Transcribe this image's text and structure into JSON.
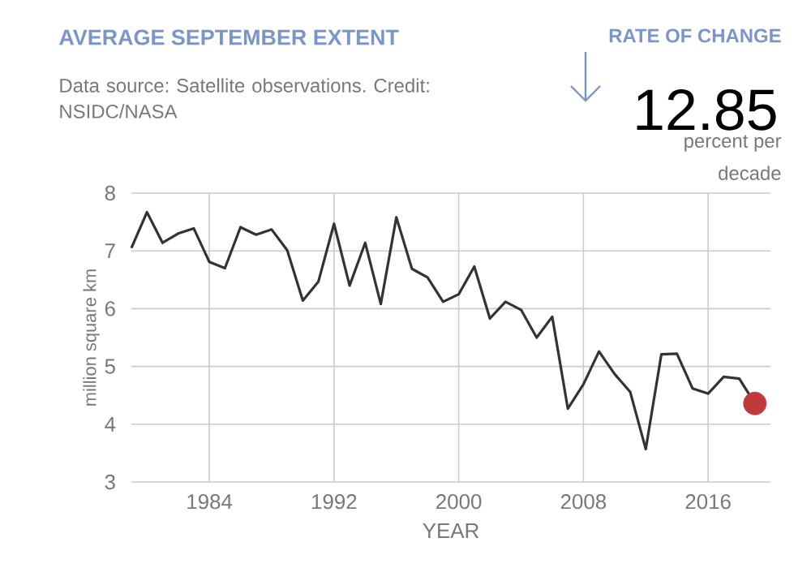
{
  "chart_data": {
    "type": "line",
    "title": "AVERAGE SEPTEMBER EXTENT",
    "xlabel": "YEAR",
    "ylabel": "million square km",
    "annotations": [
      "Data source: Satellite observations. Credit: NSIDC/NASA",
      "RATE OF CHANGE",
      "12.85",
      "percent per decade"
    ],
    "xlim": [
      1979,
      2020
    ],
    "ylim": [
      3,
      8
    ],
    "xticks": [
      1984,
      1992,
      2000,
      2008,
      2016
    ],
    "yticks": [
      3,
      4,
      5,
      6,
      7,
      8
    ],
    "grid": true,
    "series": [
      {
        "color": "#333333",
        "marker": "none",
        "x": [
          1979,
          1980,
          1981,
          1982,
          1983,
          1984,
          1985,
          1986,
          1987,
          1988,
          1989,
          1990,
          1991,
          1992,
          1993,
          1994,
          1995,
          1996,
          1997,
          1998,
          1999,
          2000,
          2001,
          2002,
          2003,
          2004,
          2005,
          2006,
          2007,
          2008,
          2009,
          2010,
          2011,
          2012,
          2013,
          2014,
          2015,
          2016,
          2017,
          2018,
          2019
        ],
        "values": [
          7.05,
          7.67,
          7.14,
          7.3,
          7.39,
          6.81,
          6.7,
          7.41,
          7.28,
          7.37,
          7.01,
          6.14,
          6.47,
          7.47,
          6.4,
          7.14,
          6.08,
          7.58,
          6.69,
          6.54,
          6.12,
          6.25,
          6.73,
          5.83,
          6.12,
          5.98,
          5.5,
          5.86,
          4.27,
          4.69,
          5.26,
          4.87,
          4.56,
          3.57,
          5.21,
          5.22,
          4.62,
          4.53,
          4.82,
          4.79,
          4.36
        ]
      },
      {
        "type": "scatter",
        "color": "#c0393b",
        "marker": "circle",
        "x": [
          2019
        ],
        "values": [
          4.36
        ]
      }
    ]
  }
}
